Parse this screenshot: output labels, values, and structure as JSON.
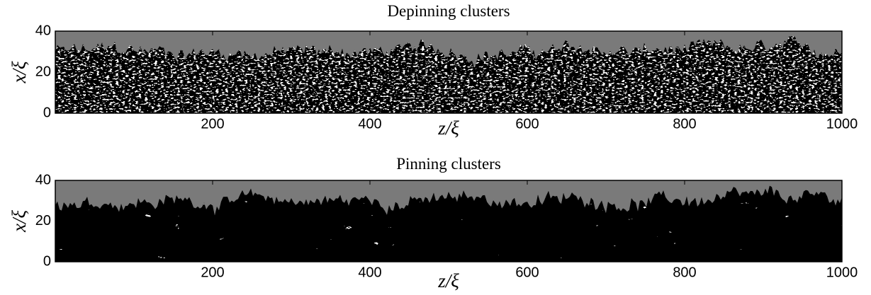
{
  "chart_data": [
    {
      "type": "heatmap",
      "title": "Depinning clusters",
      "xlabel": "z/ξ",
      "ylabel": "x/ξ",
      "xlim": [
        0,
        1000
      ],
      "xticks": [
        200,
        400,
        600,
        800,
        1000
      ],
      "ylim": [
        0,
        40
      ],
      "yticks": [
        0,
        20,
        40
      ]
    },
    {
      "type": "heatmap",
      "title": "Pinning clusters",
      "xlabel": "z/ξ",
      "ylabel": "x/ξ",
      "xlim": [
        0,
        1000
      ],
      "xticks": [
        200,
        400,
        600,
        800,
        1000
      ],
      "ylim": [
        0,
        40
      ],
      "yticks": [
        0,
        20,
        40
      ]
    }
  ]
}
